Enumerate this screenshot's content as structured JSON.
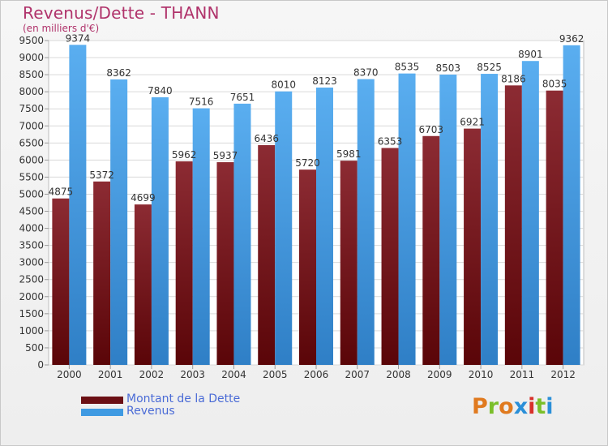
{
  "header": {
    "title": "Revenus/Dette - THANN",
    "subtitle": "(en milliers d'€)"
  },
  "colors": {
    "debt": "#7a1c22",
    "revenue": "#4ea3e6",
    "title": "#b0336b"
  },
  "legend": [
    {
      "label": "Montant de la Dette",
      "color": "#6b0f14"
    },
    {
      "label": "Revenus",
      "color": "#3f9ae2"
    }
  ],
  "logo": {
    "text": "Proxiti"
  },
  "chart_data": {
    "type": "bar",
    "title": "Revenus/Dette - THANN",
    "subtitle": "(en milliers d'€)",
    "categories": [
      "2000",
      "2001",
      "2002",
      "2003",
      "2004",
      "2005",
      "2006",
      "2007",
      "2008",
      "2009",
      "2010",
      "2011",
      "2012"
    ],
    "series": [
      {
        "name": "Montant de la Dette",
        "values": [
          4875,
          5372,
          4699,
          5962,
          5937,
          6436,
          5720,
          5981,
          6353,
          6703,
          6921,
          8186,
          8035
        ]
      },
      {
        "name": "Revenus",
        "values": [
          9374,
          8362,
          7840,
          7516,
          7651,
          8010,
          8123,
          8370,
          8535,
          8503,
          8525,
          8901,
          9362
        ]
      }
    ],
    "yticks": [
      0,
      500,
      1000,
      1500,
      2000,
      2500,
      3000,
      3500,
      4000,
      4500,
      5000,
      5500,
      6000,
      6500,
      7000,
      7500,
      8000,
      8500,
      9000,
      9500
    ],
    "ylim": [
      0,
      9500
    ],
    "grid": true,
    "legend_position": "bottom-left"
  }
}
